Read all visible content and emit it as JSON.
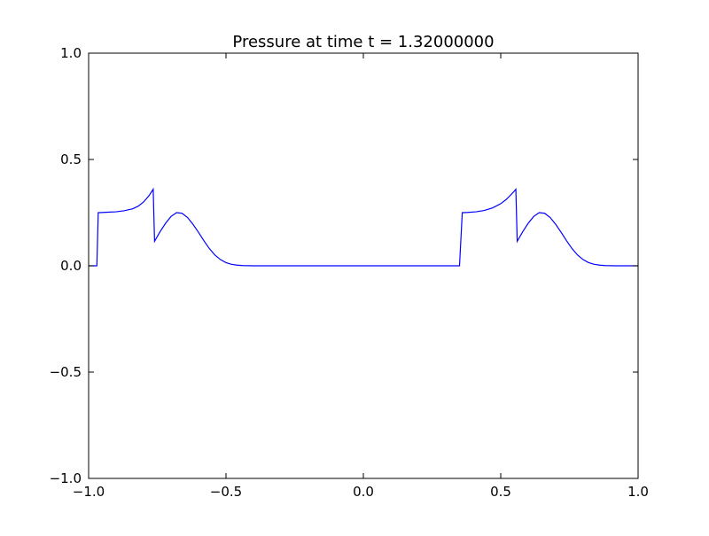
{
  "chart_data": {
    "type": "line",
    "title": "Pressure at time t =     1.32000000",
    "xlabel": "",
    "ylabel": "",
    "xlim": [
      -1.0,
      1.0
    ],
    "ylim": [
      -1.0,
      1.0
    ],
    "xticks": [
      -1.0,
      -0.5,
      0.0,
      0.5,
      1.0
    ],
    "yticks": [
      -1.0,
      -0.5,
      0.0,
      0.5,
      1.0
    ],
    "xtick_labels": [
      "−1.0",
      "−0.5",
      "0.0",
      "0.5",
      "1.0"
    ],
    "ytick_labels": [
      "−1.0",
      "−0.5",
      "0.0",
      "0.5",
      "1.0"
    ],
    "grid": false,
    "line_color": "#0000ff",
    "series": [
      {
        "x": [
          -1.0,
          -0.97,
          -0.965,
          -0.96,
          -0.93,
          -0.9,
          -0.87,
          -0.84,
          -0.82,
          -0.8,
          -0.79,
          -0.78,
          -0.77,
          -0.765,
          -0.76,
          -0.74,
          -0.72,
          -0.7,
          -0.68,
          -0.66,
          -0.64,
          -0.62,
          -0.6,
          -0.58,
          -0.56,
          -0.54,
          -0.52,
          -0.5,
          -0.48,
          -0.46,
          -0.44,
          -0.42,
          -0.4,
          -0.38,
          -0.36,
          -0.34,
          -0.3,
          0.0,
          0.35,
          0.36,
          0.365,
          0.38,
          0.41,
          0.44,
          0.47,
          0.5,
          0.52,
          0.53,
          0.54,
          0.55,
          0.555,
          0.56,
          0.58,
          0.6,
          0.62,
          0.64,
          0.66,
          0.68,
          0.7,
          0.72,
          0.74,
          0.76,
          0.78,
          0.8,
          0.82,
          0.84,
          0.86,
          0.88,
          0.9,
          0.92,
          0.94,
          0.96,
          1.0
        ],
        "y": [
          0.0,
          0.0,
          0.25,
          0.25,
          0.252,
          0.254,
          0.259,
          0.268,
          0.28,
          0.3,
          0.315,
          0.33,
          0.35,
          0.36,
          0.115,
          0.16,
          0.2,
          0.232,
          0.25,
          0.247,
          0.227,
          0.195,
          0.157,
          0.117,
          0.08,
          0.05,
          0.029,
          0.015,
          0.007,
          0.003,
          0.001,
          0.0005,
          0.0001,
          0.0,
          0.0,
          0.0,
          0.0,
          0.0,
          0.0,
          0.25,
          0.25,
          0.251,
          0.254,
          0.26,
          0.272,
          0.292,
          0.312,
          0.325,
          0.338,
          0.352,
          0.36,
          0.115,
          0.16,
          0.2,
          0.232,
          0.25,
          0.247,
          0.227,
          0.195,
          0.157,
          0.117,
          0.08,
          0.05,
          0.029,
          0.015,
          0.007,
          0.003,
          0.001,
          0.0005,
          0.0001,
          0.0,
          0.0,
          0.0
        ]
      }
    ]
  }
}
